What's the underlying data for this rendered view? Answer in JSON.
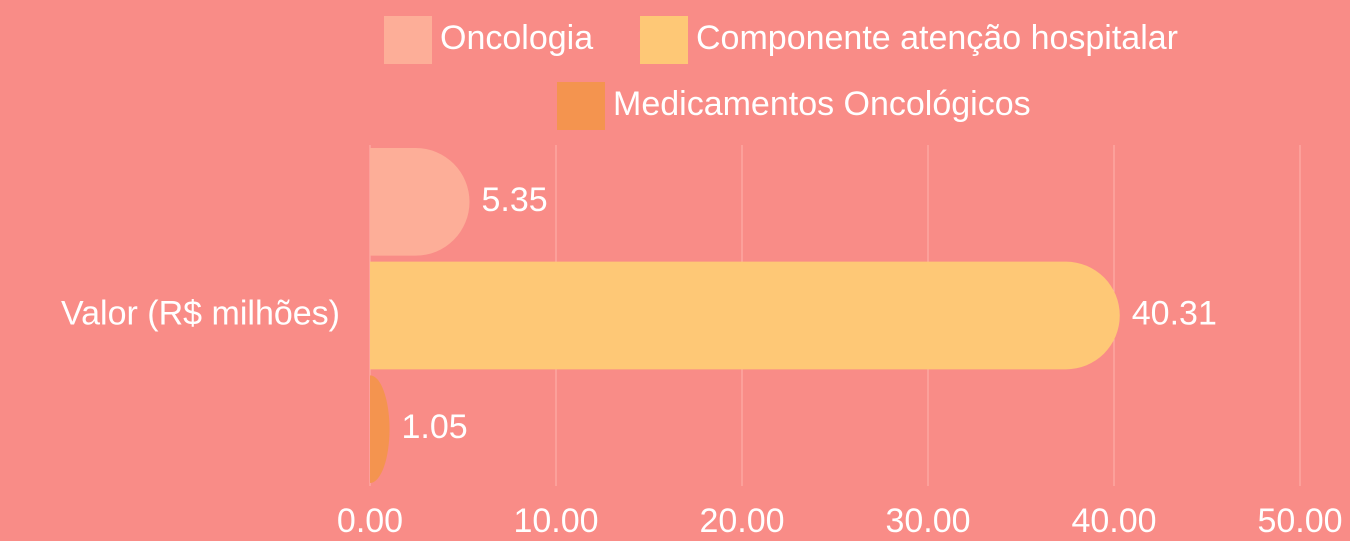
{
  "chart_data": {
    "type": "bar",
    "orientation": "horizontal",
    "categories": [
      "Valor (R$ milhões)"
    ],
    "series": [
      {
        "name": "Oncologia",
        "color": "#fdae98",
        "values": [
          5.35
        ]
      },
      {
        "name": "Componente atenção hospitalar",
        "color": "#fec876",
        "values": [
          40.31
        ]
      },
      {
        "name": "Medicamentos Oncológicos",
        "color": "#f4944f",
        "values": [
          1.05
        ]
      }
    ],
    "xlim": [
      0,
      50
    ],
    "xticks": [
      {
        "value": 0,
        "label": "0.00"
      },
      {
        "value": 10,
        "label": "10.00"
      },
      {
        "value": 20,
        "label": "20.00"
      },
      {
        "value": 30,
        "label": "30.00"
      },
      {
        "value": 40,
        "label": "40.00"
      },
      {
        "value": 50,
        "label": "50.00"
      }
    ],
    "grid": true,
    "legend": "top"
  }
}
